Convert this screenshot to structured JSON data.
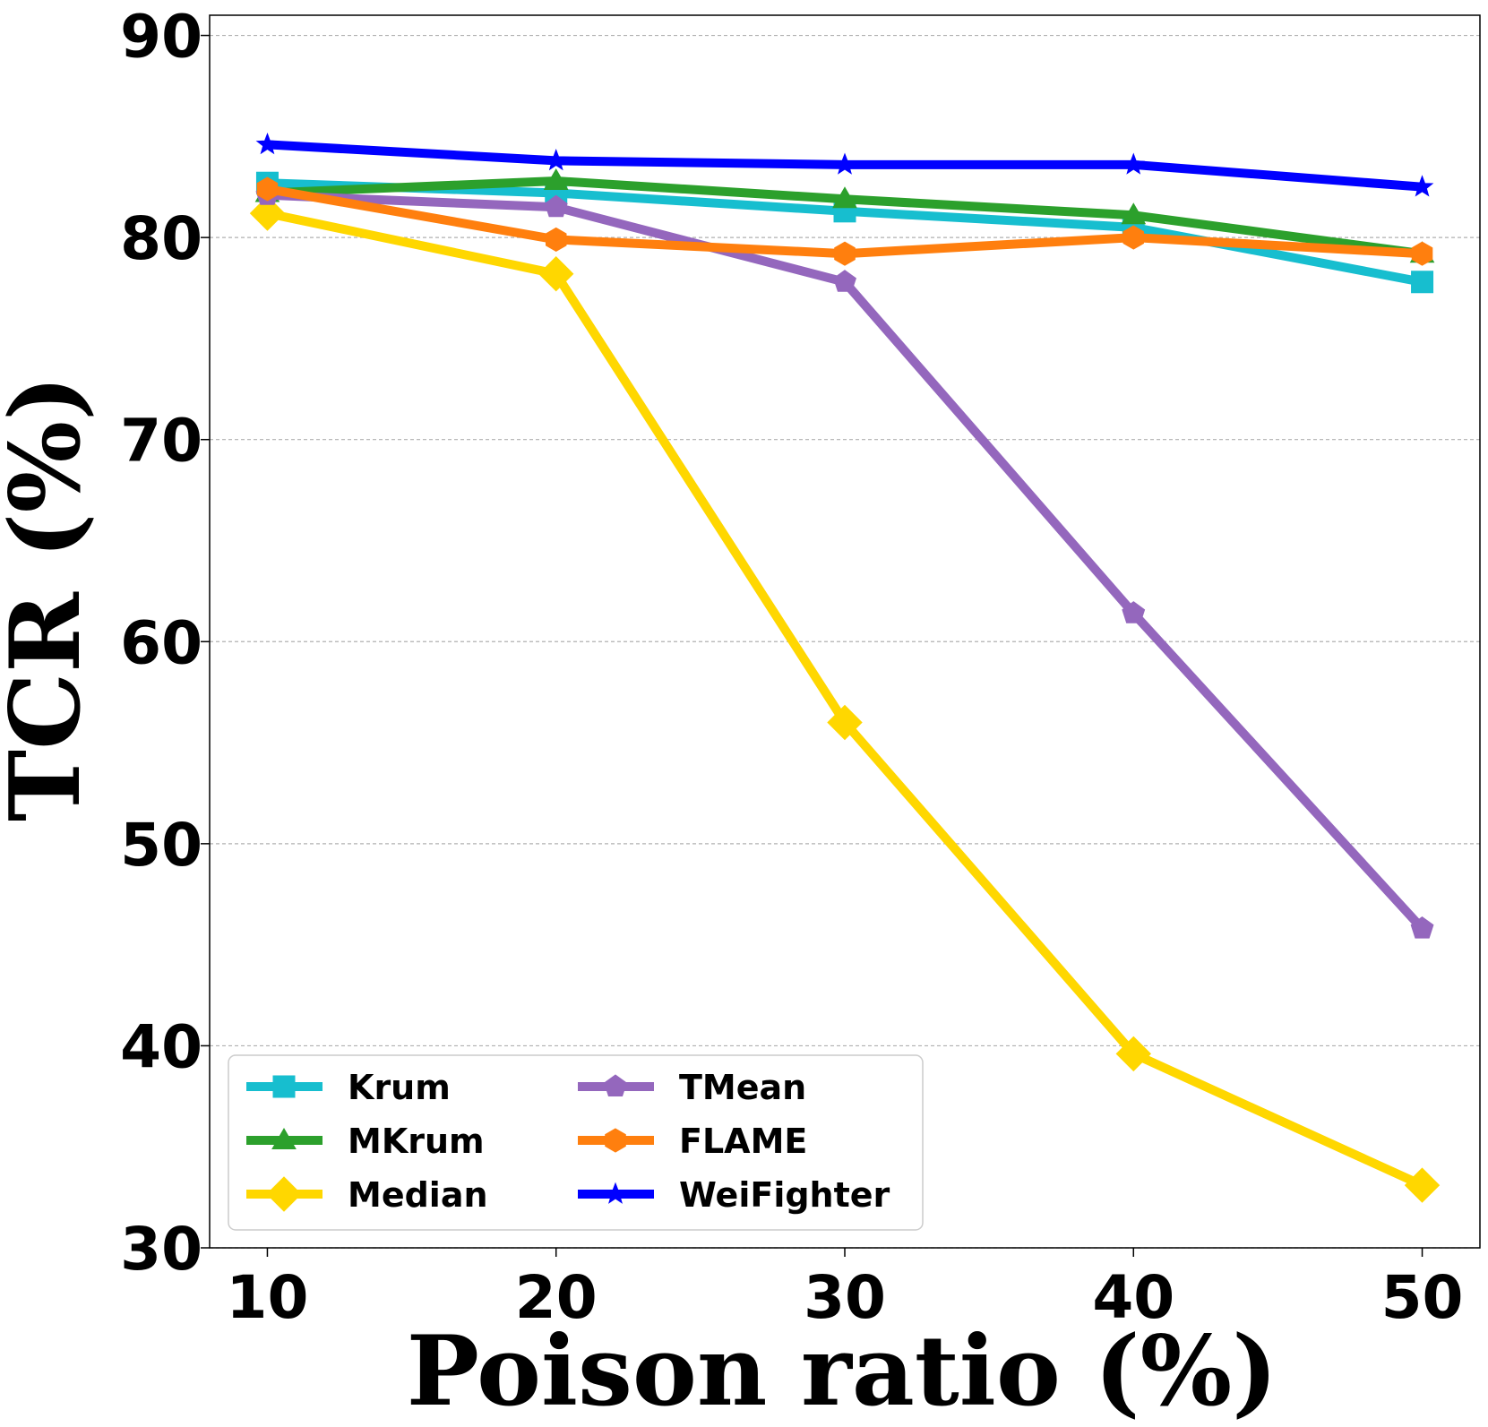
{
  "chart_data": {
    "type": "line",
    "title": "",
    "xlabel": "Poison ratio (%)",
    "ylabel": "TCR (%)",
    "x": [
      10,
      20,
      30,
      40,
      50
    ],
    "xticks": [
      "10",
      "20",
      "30",
      "40",
      "50"
    ],
    "yticks": [
      "30",
      "40",
      "50",
      "60",
      "70",
      "80",
      "90"
    ],
    "ylim": [
      30,
      91
    ],
    "xlim": [
      8,
      52
    ],
    "grid": "horizontal dashed",
    "legend_position": "lower-left",
    "series": [
      {
        "name": "Krum",
        "color": "#17becf",
        "marker": "square",
        "values": [
          82.7,
          82.2,
          81.3,
          80.5,
          77.8
        ]
      },
      {
        "name": "MKrum",
        "color": "#2ca02c",
        "marker": "triangle",
        "values": [
          82.2,
          82.8,
          81.9,
          81.1,
          79.2
        ]
      },
      {
        "name": "Median",
        "color": "#ffd700",
        "marker": "diamond",
        "values": [
          81.2,
          78.2,
          56.0,
          39.6,
          33.1
        ]
      },
      {
        "name": "TMean",
        "color": "#9467bd",
        "marker": "pentagon",
        "values": [
          82.1,
          81.5,
          77.8,
          61.4,
          45.8
        ]
      },
      {
        "name": "FLAME",
        "color": "#ff7f0e",
        "marker": "hexagon",
        "values": [
          82.4,
          79.9,
          79.2,
          80.0,
          79.2
        ]
      },
      {
        "name": "WeiFighter",
        "color": "#0000ff",
        "marker": "star",
        "values": [
          84.6,
          83.8,
          83.6,
          83.6,
          82.5
        ]
      }
    ]
  }
}
